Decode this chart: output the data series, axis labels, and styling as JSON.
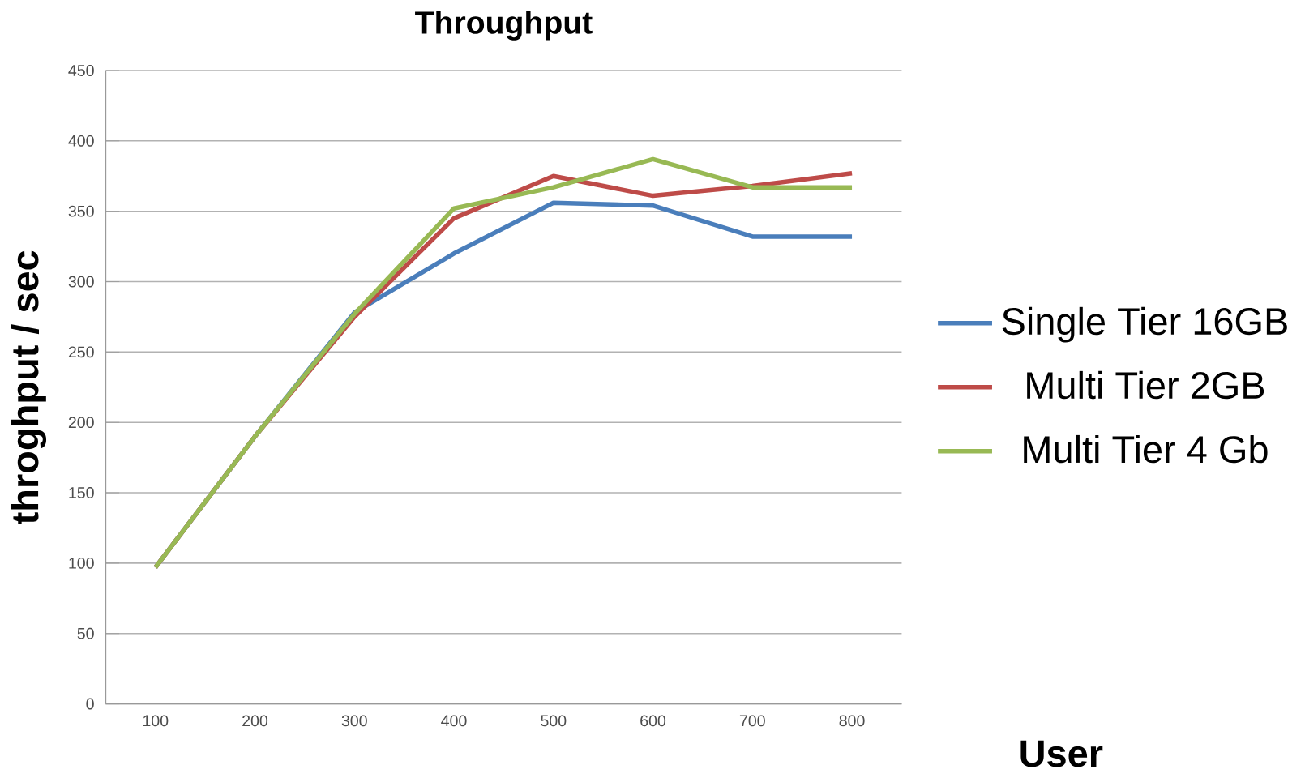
{
  "chart_data": {
    "type": "line",
    "title": "Throughput",
    "xlabel": "User",
    "ylabel": "throghput / sec",
    "categories": [
      "100",
      "200",
      "300",
      "400",
      "500",
      "600",
      "700",
      "800"
    ],
    "ylim": [
      0,
      450
    ],
    "yticks": [
      0,
      50,
      100,
      150,
      200,
      250,
      300,
      350,
      400,
      450
    ],
    "grid": "y",
    "legend": "right",
    "marker": "none",
    "series": [
      {
        "name": "Single Tier 16GB",
        "color": "#4a7ebb",
        "values": [
          97,
          190,
          278,
          320,
          356,
          354,
          332,
          332
        ]
      },
      {
        "name": "Multi Tier 2GB",
        "color": "#be4b48",
        "values": [
          97,
          190,
          275,
          345,
          375,
          361,
          368,
          377
        ]
      },
      {
        "name": "Multi Tier 4 Gb",
        "color": "#98b954",
        "values": [
          97,
          190,
          277,
          352,
          367,
          387,
          367,
          367
        ]
      }
    ]
  }
}
